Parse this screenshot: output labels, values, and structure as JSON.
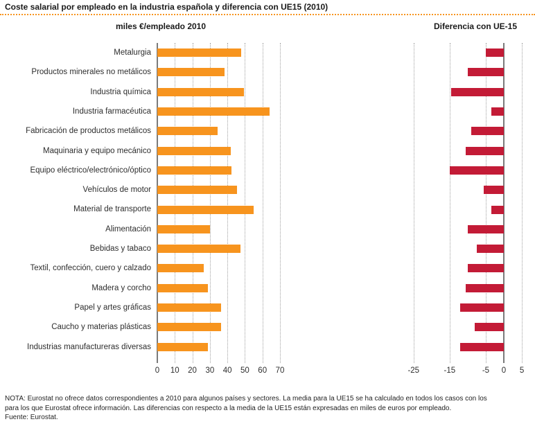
{
  "page": {
    "title": "Coste salarial por empleado en la industria española y diferencia con UE15 (2010)",
    "note_line1": "NOTA: Eurostat no ofrece datos correspondientes a 2010 para algunos países y sectores. La media para la UE15 se ha calculado en todos los casos con los",
    "note_line2": "para los que Eurostat ofrece información. Las diferencias con respecto a la media de la UE15 están expresadas en miles de euros por empleado.",
    "source": "Fuente: Eurostat."
  },
  "colors": {
    "left_bar": "#F7941E",
    "right_bar": "#C31B36",
    "gridline": "#A0A0A0",
    "axis": "#7A7A7A",
    "title_rule": "#F7941E"
  },
  "categories": [
    "Metalurgia",
    "Productos minerales no metálicos",
    "Industria química",
    "Industria farmacéutica",
    "Fabricación de productos metálicos",
    "Maquinaria y equipo mecánico",
    "Equipo eléctrico/electrónico/óptico",
    "Vehículos de motor",
    "Material de transporte",
    "Alimentación",
    "Bebidas y tabaco",
    "Textil, confección, cuero y calzado",
    "Madera y corcho",
    "Papel y artes gráficas",
    "Caucho y materias plásticas",
    "Industrias manufactureras diversas"
  ],
  "chart_data": [
    {
      "type": "bar",
      "orientation": "horizontal",
      "title": "miles €/empleado 2010",
      "categories": [
        "Metalurgia",
        "Productos minerales no metálicos",
        "Industria química",
        "Industria farmacéutica",
        "Fabricación de productos metálicos",
        "Maquinaria y equipo mecánico",
        "Equipo eléctrico/electrónico/óptico",
        "Vehículos de motor",
        "Material de transporte",
        "Alimentación",
        "Bebidas y tabaco",
        "Textil, confección, cuero y calzado",
        "Madera y corcho",
        "Papel y artes gráficas",
        "Caucho y materias plásticas",
        "Industrias manufactureras diversas"
      ],
      "values": [
        48,
        38.5,
        49.5,
        64,
        34.5,
        42,
        42.5,
        45.5,
        55,
        30,
        47.5,
        26.5,
        29,
        36.5,
        36.5,
        29
      ],
      "xlim": [
        0,
        70
      ],
      "xticks": [
        0,
        10,
        20,
        30,
        40,
        50,
        60,
        70
      ],
      "grid": "dotted-vertical",
      "legend": "none",
      "bar_color": "#F7941E"
    },
    {
      "type": "bar",
      "orientation": "horizontal",
      "title": "Diferencia con UE-15",
      "categories": [
        "Metalurgia",
        "Productos minerales no metálicos",
        "Industria química",
        "Industria farmacéutica",
        "Fabricación de productos metálicos",
        "Maquinaria y equipo mecánico",
        "Equipo eléctrico/electrónico/óptico",
        "Vehículos de motor",
        "Material de transporte",
        "Alimentación",
        "Bebidas y tabaco",
        "Textil, confección, cuero y calzado",
        "Madera y corcho",
        "Papel y artes gráficas",
        "Caucho y materias plásticas",
        "Industrias manufactureras diversas"
      ],
      "values": [
        -5,
        -10,
        -14.5,
        -3.5,
        -9,
        -10.5,
        -15,
        -5.5,
        -3.5,
        -10,
        -7.5,
        -10,
        -10.5,
        -12,
        -8,
        -12
      ],
      "xlim": [
        -25,
        5
      ],
      "xticks": [
        -25,
        -15,
        -5,
        0,
        5
      ],
      "grid": "dotted-vertical",
      "legend": "none",
      "bar_color": "#C31B36"
    }
  ]
}
